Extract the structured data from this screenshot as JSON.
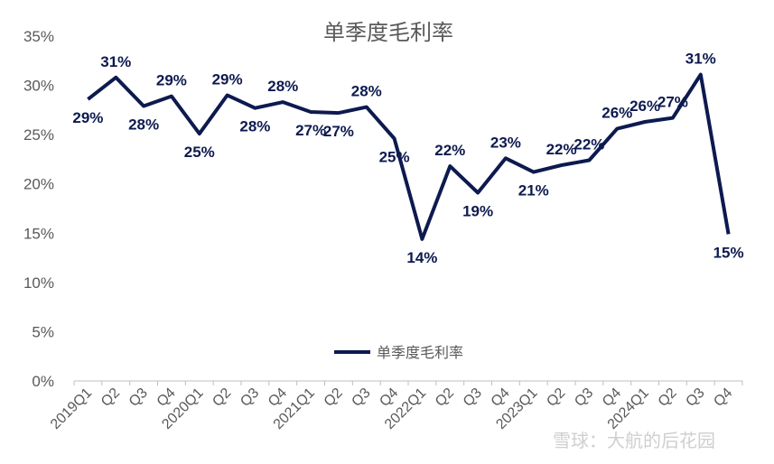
{
  "chart_data": {
    "type": "line",
    "title": "单季度毛利率",
    "categories": [
      "2019Q1",
      "Q2",
      "Q3",
      "Q4",
      "2020Q1",
      "Q2",
      "Q3",
      "Q4",
      "2021Q1",
      "Q2",
      "Q3",
      "Q4",
      "2022Q1",
      "Q2",
      "Q3",
      "Q4",
      "2023Q1",
      "Q2",
      "Q3",
      "Q4",
      "2024Q1",
      "Q2",
      "Q3",
      "Q4"
    ],
    "series": [
      {
        "name": "单季度毛利率",
        "values": [
          28.6,
          30.8,
          27.9,
          28.9,
          25.1,
          29.0,
          27.7,
          28.3,
          27.3,
          27.2,
          27.8,
          24.6,
          14.4,
          21.8,
          19.1,
          22.6,
          21.2,
          21.9,
          22.4,
          25.6,
          26.3,
          26.7,
          31.1,
          14.9
        ],
        "labels": [
          "29%",
          "31%",
          "28%",
          "29%",
          "25%",
          "29%",
          "28%",
          "28%",
          "27%",
          "27%",
          "28%",
          "25%",
          "14%",
          "22%",
          "19%",
          "23%",
          "21%",
          "22%",
          "22%",
          "26%",
          "26%",
          "27%",
          "31%",
          "15%"
        ],
        "color": "#0d1a4f"
      }
    ],
    "yticks": [
      "0%",
      "5%",
      "10%",
      "15%",
      "20%",
      "25%",
      "30%",
      "35%"
    ],
    "ylim": [
      0,
      35
    ],
    "grid": false,
    "legend_position": "bottom-center"
  },
  "watermark": "雪球：大航的后花园"
}
